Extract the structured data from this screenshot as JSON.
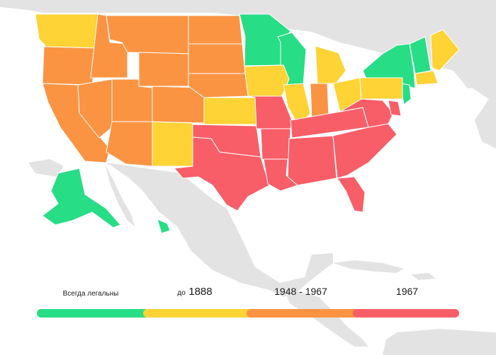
{
  "map": {
    "categories": [
      {
        "id": "always",
        "color": "#27dd86"
      },
      {
        "id": "until1888",
        "color": "#fdd335"
      },
      {
        "id": "1948-1967",
        "color": "#fa9443"
      },
      {
        "id": "1967",
        "color": "#f85e68"
      }
    ],
    "land_color": "#e3e3e3",
    "ocean_color": "#ffffff",
    "border_color": "#ffffff"
  },
  "legend": {
    "items": [
      {
        "label_small": "Всегда легальны",
        "label_big": "",
        "color": "#27dd86"
      },
      {
        "label_small": "до",
        "label_big": "1888",
        "color": "#fdd335"
      },
      {
        "label_small": "",
        "label_big": "1948 - 1967",
        "color": "#fa9443"
      },
      {
        "label_small": "",
        "label_big": "1967",
        "color": "#f85e68"
      }
    ]
  }
}
